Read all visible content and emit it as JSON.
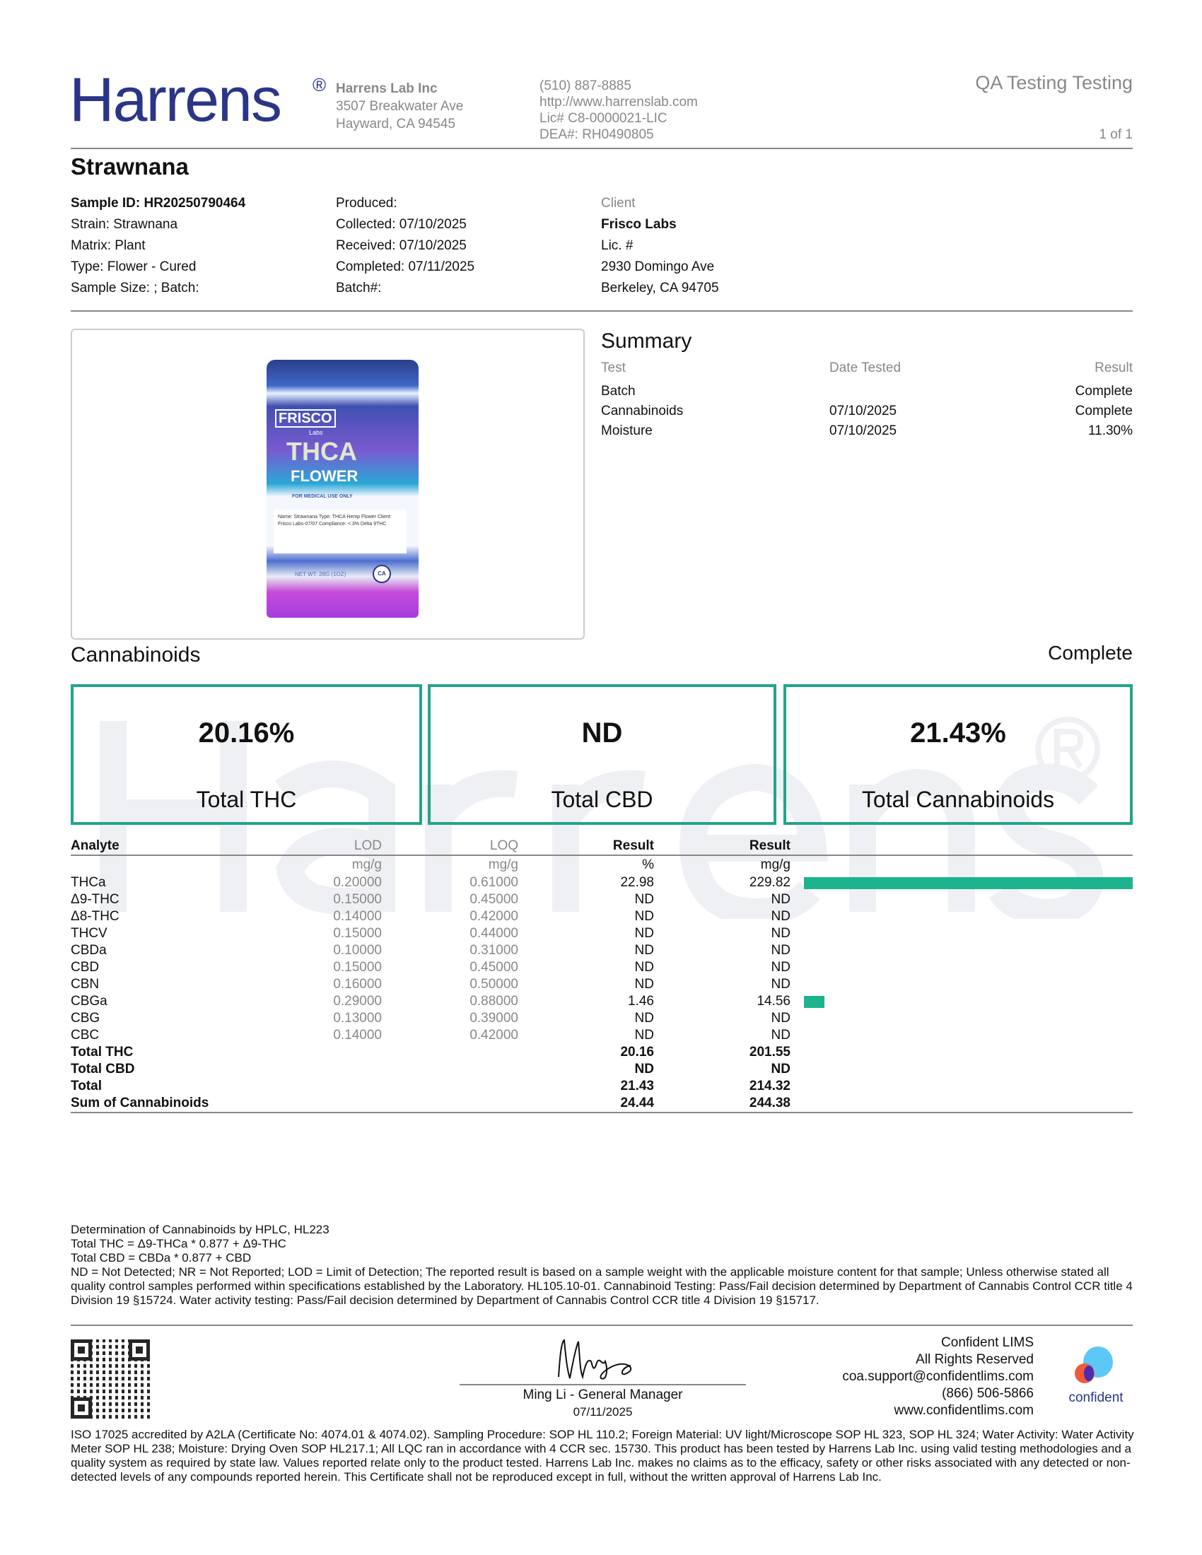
{
  "header": {
    "logo": "Harrens",
    "logo_mark": "®",
    "company": [
      "Harrens Lab Inc",
      "3507 Breakwater Ave",
      "Hayward, CA 94545"
    ],
    "contact": [
      "(510) 887-8885",
      "http://www.harrenslab.com",
      "Lic# C8-0000021-LIC",
      "DEA#: RH0490805"
    ],
    "report_title": "QA Testing Testing",
    "page": "1 of 1"
  },
  "sample": {
    "name": "Strawnana",
    "col1": [
      "Sample ID: HR20250790464",
      "Strain: Strawnana",
      "Matrix: Plant",
      "Type: Flower - Cured",
      "Sample Size: ; Batch:"
    ],
    "col2": [
      "Produced:",
      "Collected: 07/10/2025",
      "Received: 07/10/2025",
      "Completed: 07/11/2025",
      "Batch#:"
    ],
    "client_label": "Client",
    "client": [
      "Frisco Labs",
      "Lic. #",
      "2930 Domingo Ave",
      "Berkeley, CA 94705"
    ]
  },
  "product_image": {
    "brand": "FRISCO",
    "sub": "Labs",
    "line1": "THCA",
    "line2": "FLOWER",
    "note": "FOR MEDICAL USE ONLY",
    "label": "Name: Strawnana Type: THCA Hemp Flower Client: Frisco Labs-07/07 Compliance: <.3% Delta 9THC",
    "weight": "NET WT. 28G (1OZ)",
    "badge": "CA"
  },
  "summary": {
    "title": "Summary",
    "headers": [
      "Test",
      "Date Tested",
      "Result"
    ],
    "rows": [
      [
        "Batch",
        "",
        "Complete"
      ],
      [
        "Cannabinoids",
        "07/10/2025",
        "Complete"
      ],
      [
        "Moisture",
        "07/10/2025",
        "11.30%"
      ]
    ]
  },
  "cannabinoids": {
    "title": "Cannabinoids",
    "status": "Complete",
    "cards": [
      {
        "value": "20.16%",
        "label": "Total THC"
      },
      {
        "value": "ND",
        "label": "Total CBD"
      },
      {
        "value": "21.43%",
        "label": "Total Cannabinoids"
      }
    ],
    "headers": [
      "Analyte",
      "LOD",
      "LOQ",
      "Result",
      "Result"
    ],
    "units": [
      "",
      "mg/g",
      "mg/g",
      "%",
      "mg/g"
    ],
    "rows": [
      [
        "THCa",
        "0.20000",
        "0.61000",
        "22.98",
        "229.82"
      ],
      [
        "Δ9-THC",
        "0.15000",
        "0.45000",
        "ND",
        "ND"
      ],
      [
        "Δ8-THC",
        "0.14000",
        "0.42000",
        "ND",
        "ND"
      ],
      [
        "THCV",
        "0.15000",
        "0.44000",
        "ND",
        "ND"
      ],
      [
        "CBDa",
        "0.10000",
        "0.31000",
        "ND",
        "ND"
      ],
      [
        "CBD",
        "0.15000",
        "0.45000",
        "ND",
        "ND"
      ],
      [
        "CBN",
        "0.16000",
        "0.50000",
        "ND",
        "ND"
      ],
      [
        "CBGa",
        "0.29000",
        "0.88000",
        "1.46",
        "14.56"
      ],
      [
        "CBG",
        "0.13000",
        "0.39000",
        "ND",
        "ND"
      ],
      [
        "CBC",
        "0.14000",
        "0.42000",
        "ND",
        "ND"
      ]
    ],
    "totals": [
      [
        "Total THC",
        "20.16",
        "201.55"
      ],
      [
        "Total CBD",
        "ND",
        "ND"
      ],
      [
        "Total",
        "21.43",
        "214.32"
      ],
      [
        "Sum of Cannabinoids",
        "24.44",
        "244.38"
      ]
    ],
    "bar_color": "#1db38e",
    "bar_max_mg_g": 229.82
  },
  "notes": [
    "Determination of Cannabinoids by HPLC, HL223",
    "Total THC = Δ9-THCa * 0.877 + Δ9-THC",
    "Total CBD = CBDa * 0.877 + CBD",
    "ND = Not Detected; NR = Not Reported; LOD = Limit of Detection; The reported result is based on a sample weight with the applicable moisture content for that sample; Unless otherwise stated all quality control samples performed within specifications established by the Laboratory. HL105.10-01. Cannabinoid Testing: Pass/Fail decision determined by Department of Cannabis Control CCR title 4 Division 19 §15724. Water activity testing: Pass/Fail decision determined by Department of Cannabis Control CCR title 4 Division 19 §15717."
  ],
  "signature": {
    "name": "Ming Li - General Manager",
    "date": "07/11/2025"
  },
  "lims": {
    "lines": [
      "Confident LIMS",
      "All Rights Reserved",
      "coa.support@confidentlims.com",
      "(866) 506-5866",
      "www.confidentlims.com"
    ],
    "logo_text": "confident"
  },
  "disclaimer": "ISO 17025 accredited by A2LA (Certificate No: 4074.01 & 4074.02). Sampling Procedure: SOP HL 110.2; Foreign Material: UV light/Microscope SOP HL 323, SOP HL 324; Water Activity: Water Activity Meter SOP HL 238; Moisture: Drying Oven SOP HL217.1; All LQC ran in accordance with 4 CCR sec. 15730. This product has been tested by Harrens Lab Inc. using valid testing methodologies and a quality system as required by state law. Values reported relate only to the product tested. Harrens Lab Inc. makes no claims as to the efficacy, safety or other risks associated with any detected or non-detected levels of any compounds reported herein. This Certificate shall not be reproduced except in full, without the written approval of Harrens Lab Inc."
}
